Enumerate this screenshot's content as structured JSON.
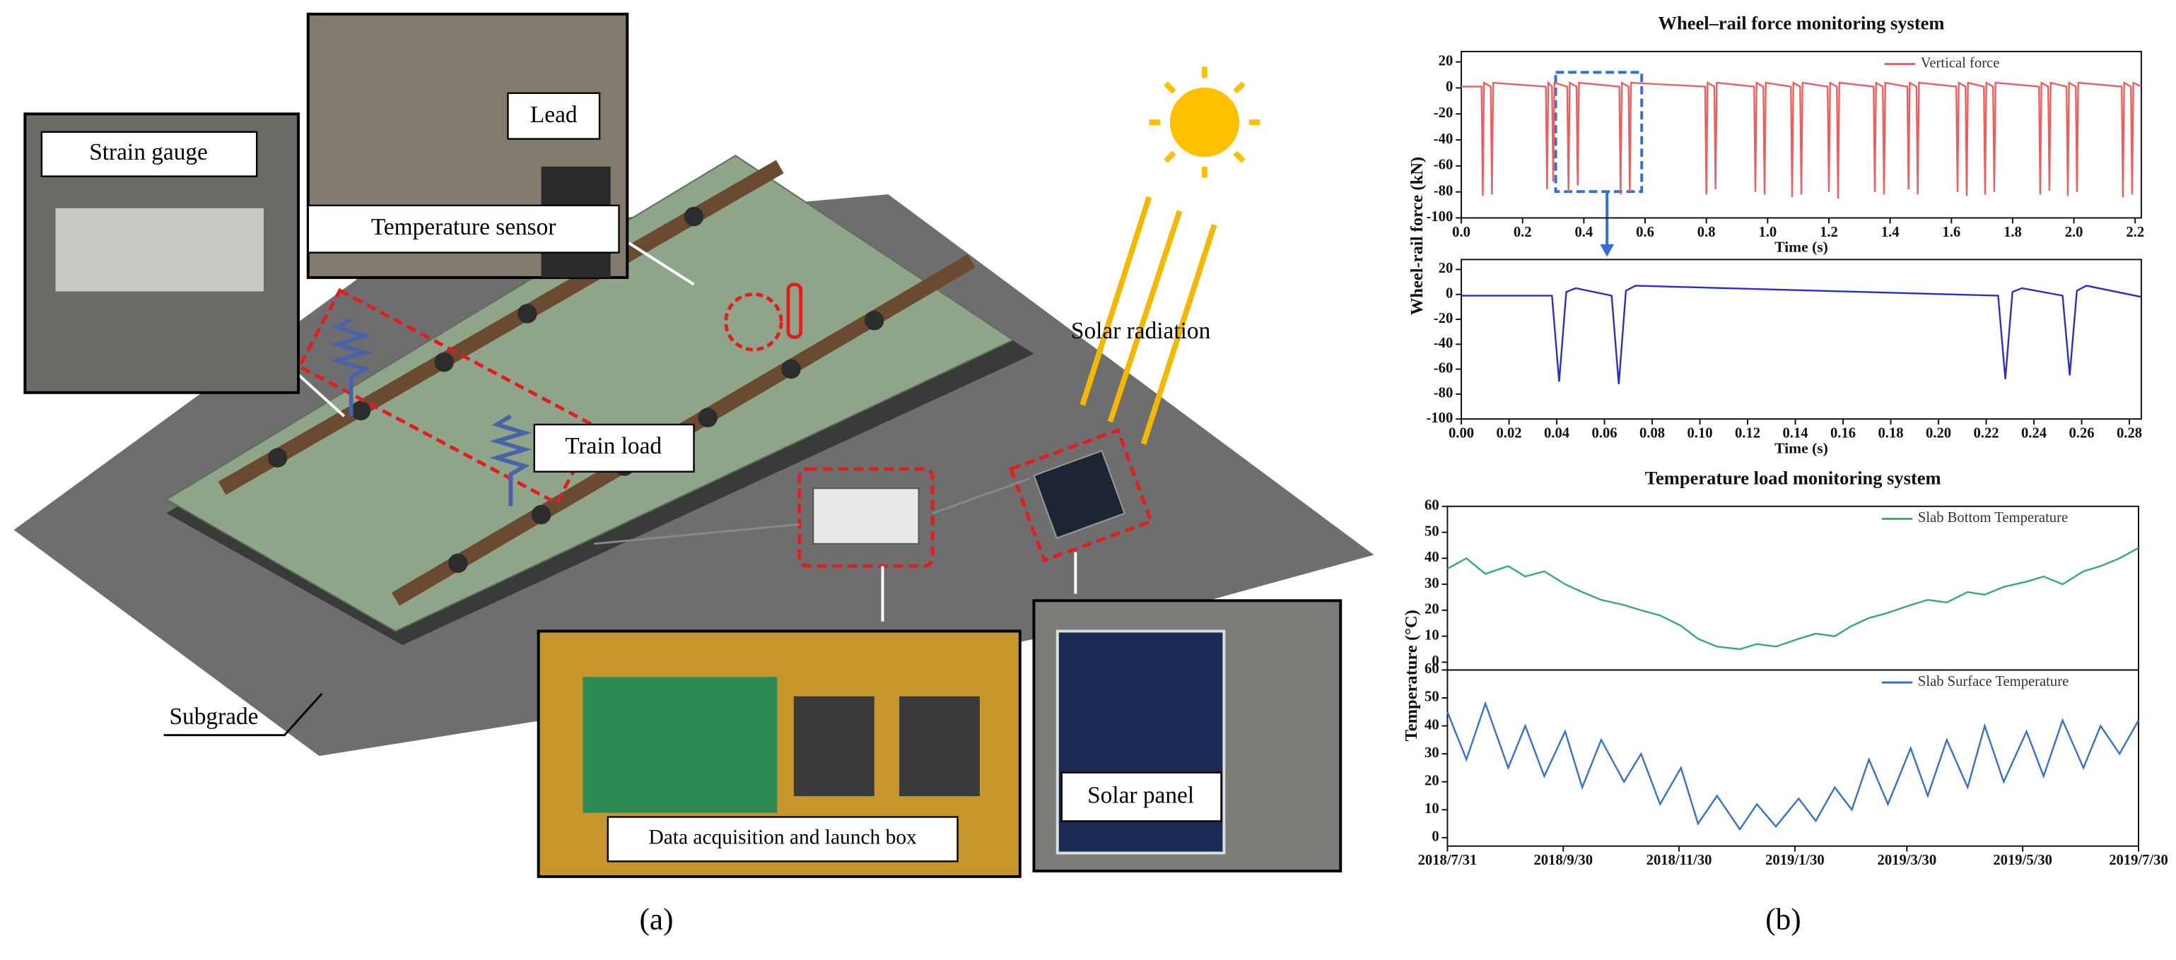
{
  "diagram": {
    "panel_label": "(a)",
    "strain_gauge": "Strain gauge",
    "lead": "Lead",
    "temperature_sensor": "Temperature sensor",
    "solar_radiation": "Solar radiation",
    "train_load": "Train load",
    "subgrade": "Subgrade",
    "data_box": "Data acquisition and launch box",
    "solar_panel": "Solar panel"
  },
  "panel_b_label": "(b)",
  "chart_data": [
    {
      "type": "line",
      "title": "Wheel–rail force monitoring system",
      "x_label": "Time (s)",
      "y_label": "Wheel-rail force (kN)",
      "xlim": [
        0,
        2.22
      ],
      "ylim": [
        -100,
        28
      ],
      "xticks": [
        {
          "value": 0,
          "label": "0.0"
        },
        0.2,
        0.4,
        0.6,
        0.8,
        {
          "value": 1,
          "label": "1.0"
        },
        1.2,
        1.4,
        1.6,
        1.8,
        {
          "value": 2,
          "label": "2.0"
        },
        2.2
      ],
      "yticks": [
        -100,
        -80,
        -60,
        -40,
        -20,
        0,
        20
      ],
      "legend": "upper right",
      "x": [
        0,
        0.066,
        0.07,
        0.074,
        0.096,
        0.1,
        0.104,
        0.276,
        0.28,
        0.284,
        0.296,
        0.3,
        0.304,
        0.346,
        0.35,
        0.354,
        0.376,
        0.38,
        0.384,
        0.516,
        0.52,
        0.524,
        0.546,
        0.55,
        0.554,
        0.796,
        0.8,
        0.804,
        0.826,
        0.83,
        0.834,
        0.956,
        0.96,
        0.964,
        0.986,
        0.99,
        0.994,
        1.076,
        1.08,
        1.084,
        1.106,
        1.11,
        1.114,
        1.196,
        1.2,
        1.204,
        1.226,
        1.23,
        1.234,
        1.346,
        1.35,
        1.354,
        1.376,
        1.38,
        1.384,
        1.456,
        1.46,
        1.464,
        1.486,
        1.49,
        1.494,
        1.616,
        1.62,
        1.624,
        1.646,
        1.65,
        1.654,
        1.706,
        1.71,
        1.714,
        1.736,
        1.74,
        1.744,
        1.886,
        1.89,
        1.894,
        1.916,
        1.92,
        1.924,
        1.976,
        1.98,
        1.984,
        2.006,
        2.01,
        2.014,
        2.156,
        2.16,
        2.164,
        2.186,
        2.19,
        2.194,
        2.22
      ],
      "series": [
        {
          "name": "Vertical force",
          "color": "#f25b5b",
          "values": [
            1,
            1,
            -83,
            4,
            1,
            -82,
            4,
            1,
            -78,
            4,
            1,
            -72,
            4,
            1,
            -80,
            4,
            1,
            -75,
            4,
            1,
            -82,
            4,
            1,
            -80,
            4,
            1,
            -82,
            4,
            1,
            -78,
            4,
            1,
            -80,
            4,
            1,
            -82,
            4,
            1,
            -84,
            4,
            1,
            -82,
            4,
            1,
            -80,
            4,
            1,
            -85,
            4,
            1,
            -80,
            4,
            1,
            -82,
            4,
            1,
            -78,
            4,
            1,
            -82,
            4,
            1,
            -80,
            4,
            1,
            -83,
            4,
            1,
            -82,
            4,
            1,
            -80,
            4,
            1,
            -82,
            4,
            1,
            -79,
            4,
            1,
            -83,
            4,
            1,
            -80,
            4,
            1,
            -84,
            4,
            1,
            -82,
            4,
            1
          ]
        }
      ]
    },
    {
      "type": "line",
      "x_label": "Time (s)",
      "xlim": [
        0,
        0.285
      ],
      "ylim": [
        -100,
        28
      ],
      "xticks": [
        {
          "value": 0,
          "label": "0.00"
        },
        0.02,
        0.04,
        0.06,
        0.08,
        {
          "value": 0.1,
          "label": "0.10"
        },
        0.12,
        0.14,
        0.16,
        0.18,
        {
          "value": 0.2,
          "label": "0.20"
        },
        0.22,
        0.24,
        0.26,
        0.28
      ],
      "yticks": [
        -100,
        -80,
        -60,
        -40,
        -20,
        0,
        20
      ],
      "x": [
        0,
        0.038,
        0.041,
        0.044,
        0.048,
        0.063,
        0.066,
        0.069,
        0.073,
        0.225,
        0.228,
        0.231,
        0.235,
        0.252,
        0.255,
        0.258,
        0.262,
        0.285
      ],
      "series": [
        {
          "color": "#2a2ad4",
          "values": [
            -1,
            -1,
            -70,
            2,
            5,
            -1,
            -72,
            3,
            7,
            -1,
            -68,
            2,
            5,
            -1,
            -65,
            3,
            7,
            -2
          ]
        }
      ]
    },
    {
      "type": "line",
      "title": "Temperature load monitoring system",
      "y_label": "Temperature (°C)",
      "xlim": [
        "2018/7/31",
        "2019/7/30"
      ],
      "ylim": [
        -3,
        60
      ],
      "yticks": [
        0,
        10,
        20,
        30,
        40,
        50,
        60
      ],
      "legend": "upper right",
      "x": [
        "2018/7/31",
        "2018/8/10",
        "2018/8/20",
        "2018/9/1",
        "2018/9/10",
        "2018/9/20",
        "2018/10/1",
        "2018/10/10",
        "2018/10/20",
        "2018/11/1",
        "2018/11/10",
        "2018/11/20",
        "2018/12/1",
        "2018/12/10",
        "2018/12/20",
        "2019/1/1",
        "2019/1/10",
        "2019/1/20",
        "2019/2/1",
        "2019/2/10",
        "2019/2/20",
        "2019/3/1",
        "2019/3/10",
        "2019/3/20",
        "2019/4/1",
        "2019/4/10",
        "2019/4/20",
        "2019/5/1",
        "2019/5/10",
        "2019/5/20",
        "2019/6/1",
        "2019/6/10",
        "2019/6/20",
        "2019/7/1",
        "2019/7/10",
        "2019/7/20",
        "2019/7/30"
      ],
      "series": [
        {
          "name": "Slab Bottom Temperature",
          "color": "#2fae6a",
          "values": [
            36,
            40,
            34,
            37,
            33,
            35,
            30,
            27,
            24,
            22,
            20,
            18,
            14,
            9,
            6,
            5,
            7,
            6,
            9,
            11,
            10,
            14,
            17,
            19,
            22,
            24,
            23,
            27,
            26,
            29,
            31,
            33,
            30,
            35,
            37,
            40,
            44
          ]
        }
      ]
    },
    {
      "type": "line",
      "xlim": [
        "2018/7/31",
        "2019/7/30"
      ],
      "ylim": [
        -3,
        60
      ],
      "xticks": [
        "2018/7/31",
        "2018/9/30",
        "2018/11/30",
        "2019/1/30",
        "2019/3/30",
        "2019/5/30",
        "2019/7/30"
      ],
      "yticks": [
        0,
        10,
        20,
        30,
        40,
        50,
        60
      ],
      "legend": "upper right",
      "x": [
        "2018/7/31",
        "2018/8/10",
        "2018/8/20",
        "2018/9/1",
        "2018/9/10",
        "2018/9/20",
        "2018/10/1",
        "2018/10/10",
        "2018/10/20",
        "2018/11/1",
        "2018/11/10",
        "2018/11/20",
        "2018/12/1",
        "2018/12/10",
        "2018/12/20",
        "2019/1/1",
        "2019/1/10",
        "2019/1/20",
        "2019/2/1",
        "2019/2/10",
        "2019/2/20",
        "2019/3/1",
        "2019/3/10",
        "2019/3/20",
        "2019/4/1",
        "2019/4/10",
        "2019/4/20",
        "2019/5/1",
        "2019/5/10",
        "2019/5/20",
        "2019/6/1",
        "2019/6/10",
        "2019/6/20",
        "2019/7/1",
        "2019/7/10",
        "2019/7/20",
        "2019/7/30"
      ],
      "series": [
        {
          "name": "Slab Surface Temperature",
          "color": "#2f6fd6",
          "values": [
            45,
            28,
            48,
            25,
            40,
            22,
            38,
            18,
            35,
            20,
            30,
            12,
            25,
            5,
            15,
            3,
            12,
            4,
            14,
            6,
            18,
            10,
            28,
            12,
            32,
            15,
            35,
            18,
            40,
            20,
            38,
            22,
            42,
            25,
            40,
            30,
            42
          ]
        }
      ]
    }
  ]
}
